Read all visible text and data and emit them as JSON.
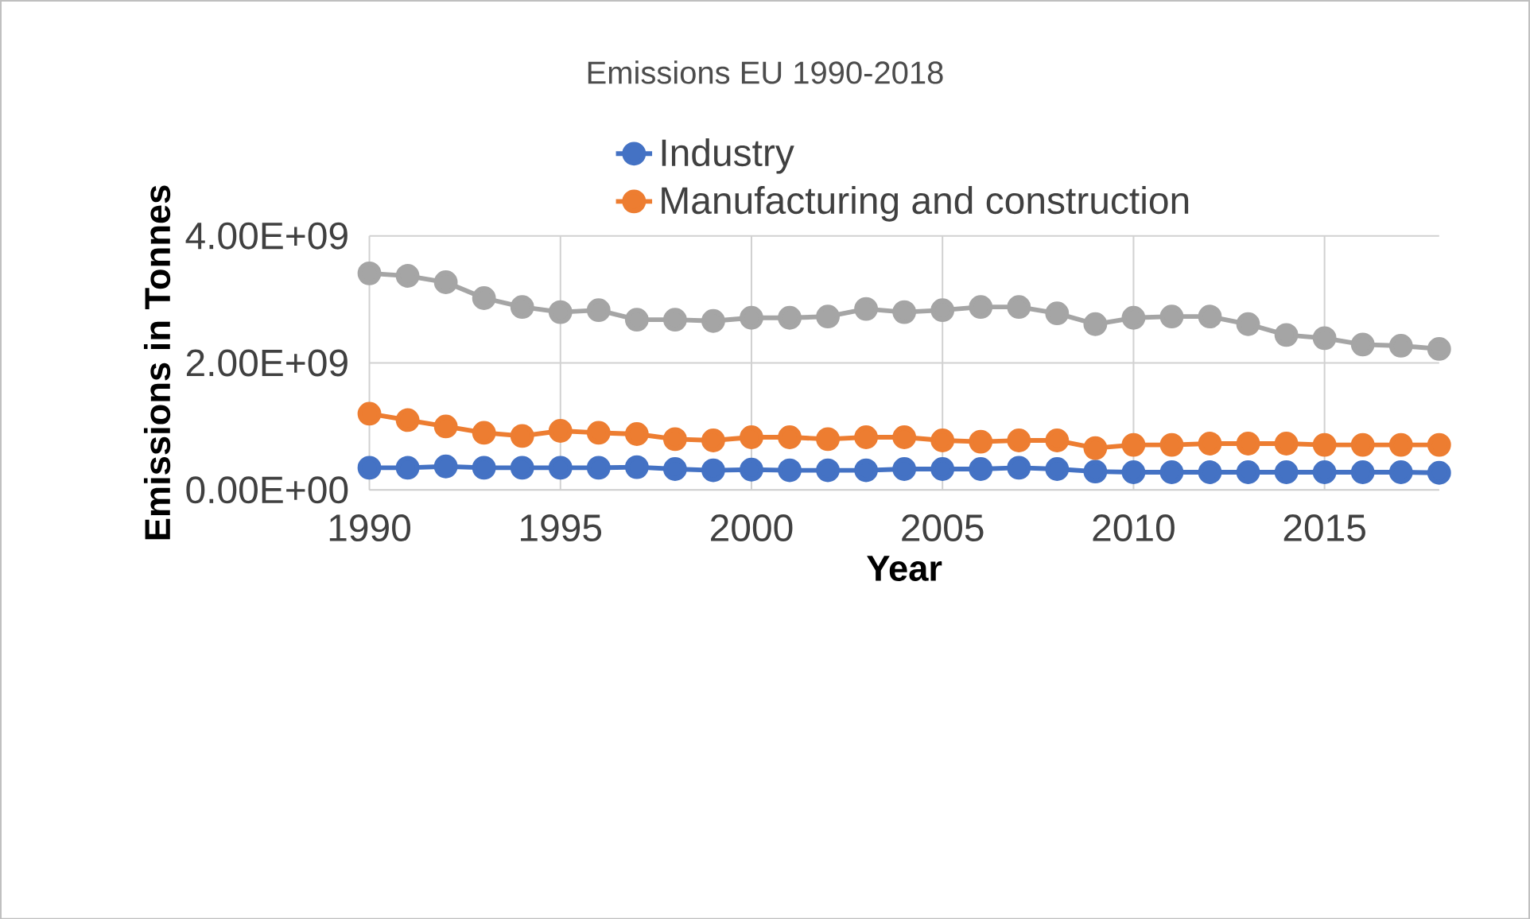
{
  "chart_data": {
    "type": "line",
    "title": "Emissions EU 1990-2018",
    "xlabel": "Year",
    "ylabel": "Emissions in Tonnes",
    "x": [
      1990,
      1991,
      1992,
      1993,
      1994,
      1995,
      1996,
      1997,
      1998,
      1999,
      2000,
      2001,
      2002,
      2003,
      2004,
      2005,
      2006,
      2007,
      2008,
      2009,
      2010,
      2011,
      2012,
      2013,
      2014,
      2015,
      2016,
      2017,
      2018
    ],
    "series": [
      {
        "name": "Industry",
        "color": "#4472c4",
        "values": [
          350000000,
          350000000,
          370000000,
          350000000,
          350000000,
          350000000,
          350000000,
          360000000,
          330000000,
          310000000,
          320000000,
          310000000,
          310000000,
          310000000,
          330000000,
          330000000,
          330000000,
          350000000,
          330000000,
          290000000,
          280000000,
          280000000,
          280000000,
          280000000,
          280000000,
          280000000,
          280000000,
          280000000,
          270000000
        ]
      },
      {
        "name": "Manufacturing and construction",
        "color": "#ed7d31",
        "values": [
          1200000000,
          1100000000,
          1000000000,
          900000000,
          850000000,
          930000000,
          900000000,
          880000000,
          800000000,
          780000000,
          830000000,
          830000000,
          800000000,
          830000000,
          830000000,
          780000000,
          760000000,
          780000000,
          780000000,
          660000000,
          710000000,
          710000000,
          730000000,
          730000000,
          730000000,
          710000000,
          710000000,
          710000000,
          710000000
        ]
      },
      {
        "color": "#a5a5a5",
        "values": [
          3410000000,
          3370000000,
          3270000000,
          3020000000,
          2880000000,
          2800000000,
          2830000000,
          2680000000,
          2680000000,
          2660000000,
          2710000000,
          2710000000,
          2730000000,
          2850000000,
          2800000000,
          2830000000,
          2880000000,
          2880000000,
          2780000000,
          2610000000,
          2710000000,
          2730000000,
          2730000000,
          2610000000,
          2440000000,
          2390000000,
          2290000000,
          2270000000,
          2220000000
        ]
      }
    ],
    "xlim": [
      1990,
      2018
    ],
    "xticks": [
      1990,
      1995,
      2000,
      2005,
      2010,
      2015
    ],
    "ylim": [
      0,
      4000000000
    ],
    "yticks": [
      {
        "value": 0,
        "label": "0.00E+00"
      },
      {
        "value": 2000000000,
        "label": "2.00E+09"
      },
      {
        "value": 4000000000,
        "label": "4.00E+09"
      }
    ],
    "grid": true,
    "legend": "top",
    "marker": "circle",
    "line_style": "solid"
  }
}
